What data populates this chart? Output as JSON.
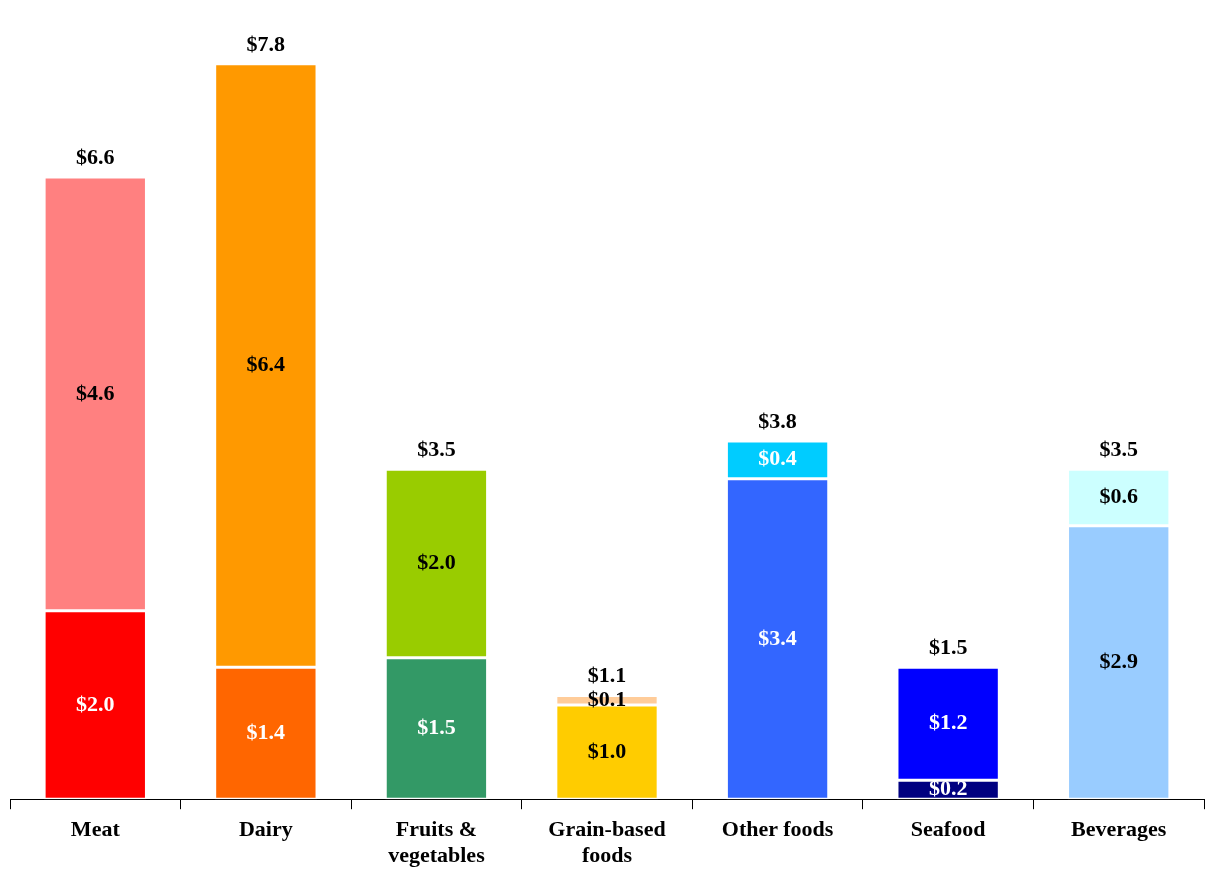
{
  "chart_data": {
    "type": "bar",
    "stacked": true,
    "legend": false,
    "categories": [
      "Meat",
      "Dairy",
      "Fruits & vegetables",
      "Grain-based foods",
      "Other foods",
      "Seafood",
      "Beverages"
    ],
    "series": [
      {
        "values": [
          2.0,
          1.4,
          1.5,
          1.0,
          3.4,
          0.2,
          2.9
        ],
        "colors": [
          "#ff0000",
          "#ff6600",
          "#339966",
          "#ffcc00",
          "#3366ff",
          "#000080",
          "#99ccff"
        ],
        "value_labels": [
          "$2.0",
          "$1.4",
          "$1.5",
          "$1.0",
          "$3.4",
          "$0.2",
          "$2.9"
        ]
      },
      {
        "values": [
          4.6,
          6.4,
          2.0,
          0.1,
          0.4,
          1.2,
          0.6
        ],
        "colors": [
          "#ff8080",
          "#ff9900",
          "#99cc00",
          "#ffcc99",
          "#00ccff",
          "#0000ff",
          "#ccffff"
        ],
        "value_labels": [
          "$4.6",
          "$6.4",
          "$2.0",
          "$0.1",
          "$0.4",
          "$1.2",
          "$0.6"
        ]
      }
    ],
    "totals": [
      "$6.6",
      "$7.8",
      "$3.5",
      "$1.1",
      "$3.8",
      "$1.5",
      "$3.5"
    ]
  }
}
